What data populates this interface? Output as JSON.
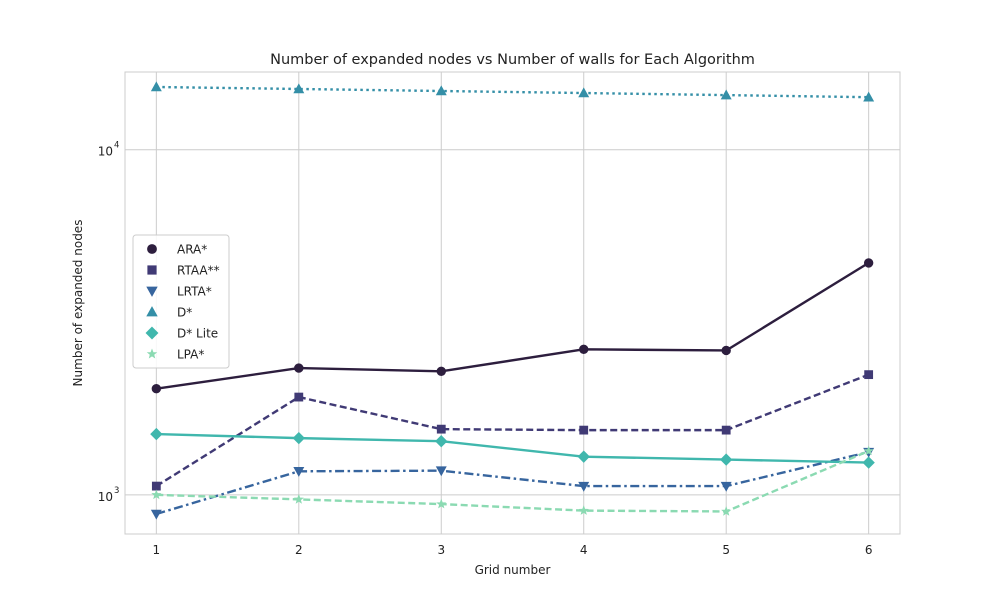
{
  "chart_data": {
    "type": "line",
    "title": "Number of expanded nodes vs Number of walls for Each Algorithm",
    "xlabel": "Grid number",
    "ylabel": "Number of expanded nodes",
    "x": [
      1,
      2,
      3,
      4,
      5,
      6
    ],
    "x_tick_labels": [
      "1",
      "2",
      "3",
      "4",
      "5",
      "6"
    ],
    "y_scale": "log",
    "ylim": [
      770,
      16800
    ],
    "y_ticks": [
      {
        "value": 1000,
        "base": "10",
        "exp": "3"
      },
      {
        "value": 10000,
        "base": "10",
        "exp": "4"
      }
    ],
    "grid": true,
    "legend_position": "center-left",
    "series": [
      {
        "name": "ARA*",
        "values": [
          2030,
          2330,
          2280,
          2640,
          2620,
          4700
        ],
        "color": "#2d1e3e",
        "marker": "circle",
        "line_style": "solid"
      },
      {
        "name": "RTAA**",
        "values": [
          1060,
          1920,
          1550,
          1540,
          1540,
          2230
        ],
        "color": "#403a75",
        "marker": "square",
        "line_style": "dashed"
      },
      {
        "name": "LRTA*",
        "values": [
          880,
          1170,
          1175,
          1060,
          1060,
          1330
        ],
        "color": "#37659e",
        "marker": "triangle-down",
        "line_style": "dashdot"
      },
      {
        "name": "D*",
        "values": [
          15200,
          15000,
          14800,
          14600,
          14400,
          14200
        ],
        "color": "#348fa7",
        "marker": "triangle-up",
        "line_style": "dotted"
      },
      {
        "name": "D* Lite",
        "values": [
          1500,
          1460,
          1430,
          1290,
          1265,
          1240
        ],
        "color": "#40b7ad",
        "marker": "diamond",
        "line_style": "solid"
      },
      {
        "name": "LPA*",
        "values": [
          1000,
          970,
          940,
          900,
          895,
          1340
        ],
        "color": "#8bdab2",
        "marker": "star",
        "line_style": "dashed"
      }
    ]
  }
}
